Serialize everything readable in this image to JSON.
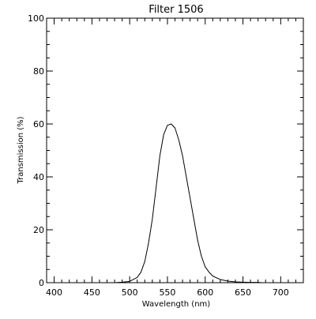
{
  "chart_data": {
    "type": "line",
    "title": "Filter 1506",
    "xlabel": "Wavelength (nm)",
    "ylabel": "Transmission (%)",
    "xlim": [
      390,
      730
    ],
    "ylim": [
      0,
      100
    ],
    "x_ticks": [
      400,
      450,
      500,
      550,
      600,
      650,
      700
    ],
    "y_ticks": [
      0,
      20,
      40,
      60,
      80,
      100
    ],
    "grid": false,
    "series": [
      {
        "x": [
          480,
          490,
          500,
          510,
          515,
          520,
          525,
          530,
          535,
          540,
          545,
          550,
          555,
          560,
          565,
          570,
          575,
          580,
          585,
          590,
          595,
          600,
          605,
          610,
          620,
          630,
          640,
          650,
          660,
          670,
          675
        ],
        "y": [
          0,
          0.2,
          0.5,
          2,
          4,
          8,
          15,
          24,
          36,
          48,
          56,
          59.5,
          60,
          58.5,
          54,
          48,
          40,
          32,
          24,
          16,
          10,
          6,
          4,
          2.5,
          1.2,
          0.6,
          0.3,
          0.2,
          0.1,
          0.1,
          0
        ]
      }
    ]
  }
}
